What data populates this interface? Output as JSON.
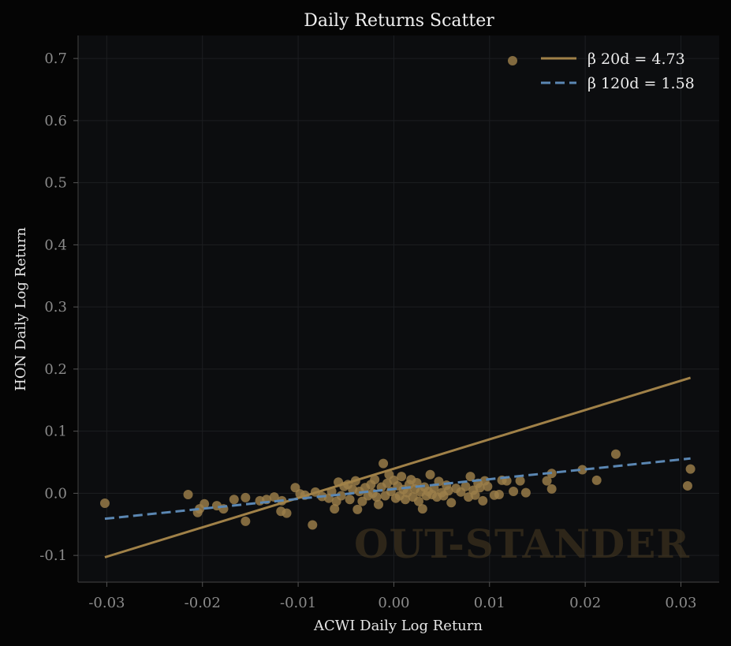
{
  "chart_data": {
    "type": "scatter",
    "title": "Daily Returns Scatter",
    "xlabel": "ACWI Daily Log Return",
    "ylabel": "HON Daily Log Return",
    "xlim": [
      -0.033,
      0.034
    ],
    "ylim": [
      -0.143,
      0.737
    ],
    "xticks": [
      -0.03,
      -0.02,
      -0.01,
      0.0,
      0.01,
      0.02,
      0.03
    ],
    "xtick_labels": [
      "-0.03",
      "-0.02",
      "-0.01",
      "0.00",
      "0.01",
      "0.02",
      "0.03"
    ],
    "yticks": [
      -0.1,
      0.0,
      0.1,
      0.2,
      0.3,
      0.4,
      0.5,
      0.6,
      0.7
    ],
    "ytick_labels": [
      "-0.1",
      "0.0",
      "0.1",
      "0.2",
      "0.3",
      "0.4",
      "0.5",
      "0.6",
      "0.7"
    ],
    "grid": true,
    "legend_position": "top-right",
    "watermark": "OUT-STANDER",
    "colors": {
      "background": "#050505",
      "plot_background": "#0c0d0f",
      "points": "#9c7f4a",
      "beta_20d": "#a08148",
      "beta_120d": "#5b87b3"
    },
    "series": [
      {
        "name": "",
        "kind": "points",
        "points": [
          [
            -0.0302,
            -0.016
          ],
          [
            -0.0215,
            -0.002
          ],
          [
            -0.0205,
            -0.031
          ],
          [
            -0.0203,
            -0.025
          ],
          [
            -0.0198,
            -0.017
          ],
          [
            -0.0185,
            -0.02
          ],
          [
            -0.0178,
            -0.025
          ],
          [
            -0.0167,
            -0.01
          ],
          [
            -0.0155,
            -0.007
          ],
          [
            -0.0155,
            -0.045
          ],
          [
            -0.014,
            -0.012
          ],
          [
            -0.0133,
            -0.01
          ],
          [
            -0.0125,
            -0.006
          ],
          [
            -0.0118,
            -0.029
          ],
          [
            -0.0117,
            -0.012
          ],
          [
            -0.0112,
            -0.032
          ],
          [
            -0.0103,
            0.009
          ],
          [
            -0.0098,
            -0.001
          ],
          [
            -0.0093,
            -0.003
          ],
          [
            -0.0085,
            -0.051
          ],
          [
            -0.0082,
            0.002
          ],
          [
            -0.0075,
            -0.005
          ],
          [
            -0.0068,
            -0.008
          ],
          [
            -0.0065,
            0.003
          ],
          [
            -0.0062,
            -0.025
          ],
          [
            -0.006,
            -0.013
          ],
          [
            -0.0058,
            0.018
          ],
          [
            -0.0055,
            -0.004
          ],
          [
            -0.0052,
            0.011
          ],
          [
            -0.0048,
            0.014
          ],
          [
            -0.0046,
            -0.01
          ],
          [
            -0.0043,
            0.006
          ],
          [
            -0.004,
            0.02
          ],
          [
            -0.0038,
            -0.026
          ],
          [
            -0.0036,
            0.003
          ],
          [
            -0.0033,
            -0.013
          ],
          [
            -0.003,
            0.009
          ],
          [
            -0.0027,
            -0.004
          ],
          [
            -0.0024,
            0.014
          ],
          [
            -0.0022,
            0.0
          ],
          [
            -0.002,
            0.022
          ],
          [
            -0.0018,
            -0.006
          ],
          [
            -0.0016,
            -0.018
          ],
          [
            -0.0013,
            0.01
          ],
          [
            -0.0011,
            0.048
          ],
          [
            -0.0009,
            -0.004
          ],
          [
            -0.0007,
            0.016
          ],
          [
            -0.0005,
            0.03
          ],
          [
            -0.0003,
            0.003
          ],
          [
            0.0,
            0.021
          ],
          [
            0.0002,
            -0.008
          ],
          [
            0.0004,
            0.012
          ],
          [
            0.0006,
            -0.004
          ],
          [
            0.0008,
            0.027
          ],
          [
            0.001,
            0.006
          ],
          [
            0.0012,
            -0.01
          ],
          [
            0.0014,
            0.001
          ],
          [
            0.0016,
            0.014
          ],
          [
            0.0018,
            0.022
          ],
          [
            0.002,
            -0.006
          ],
          [
            0.0022,
            0.007
          ],
          [
            0.0024,
            0.017
          ],
          [
            0.0026,
            -0.013
          ],
          [
            0.0028,
            0.002
          ],
          [
            0.003,
            -0.025
          ],
          [
            0.0032,
            0.01
          ],
          [
            0.0034,
            -0.004
          ],
          [
            0.0036,
            0.003
          ],
          [
            0.0038,
            0.03
          ],
          [
            0.004,
            -0.002
          ],
          [
            0.0042,
            0.008
          ],
          [
            0.0045,
            -0.006
          ],
          [
            0.0047,
            0.019
          ],
          [
            0.005,
            0.001
          ],
          [
            0.0052,
            -0.004
          ],
          [
            0.0055,
            0.013
          ],
          [
            0.0057,
            0.004
          ],
          [
            0.006,
            -0.015
          ],
          [
            0.0065,
            0.008
          ],
          [
            0.007,
            0.002
          ],
          [
            0.0075,
            0.011
          ],
          [
            0.0078,
            -0.006
          ],
          [
            0.008,
            0.027
          ],
          [
            0.0083,
            0.005
          ],
          [
            0.0085,
            -0.003
          ],
          [
            0.0088,
            0.016
          ],
          [
            0.009,
            0.009
          ],
          [
            0.0093,
            -0.012
          ],
          [
            0.0095,
            0.02
          ],
          [
            0.0098,
            0.011
          ],
          [
            0.0105,
            -0.003
          ],
          [
            0.011,
            -0.002
          ],
          [
            0.0113,
            0.021
          ],
          [
            0.0118,
            0.02
          ],
          [
            0.0125,
            0.003
          ],
          [
            0.0132,
            0.02
          ],
          [
            0.0138,
            0.001
          ],
          [
            0.016,
            0.02
          ],
          [
            0.0165,
            0.032
          ],
          [
            0.0165,
            0.007
          ],
          [
            0.0197,
            0.038
          ],
          [
            0.0212,
            0.021
          ],
          [
            0.0232,
            0.063
          ],
          [
            0.0307,
            0.012
          ],
          [
            0.031,
            0.039
          ]
        ]
      },
      {
        "name": "β 20d = 4.73",
        "kind": "line",
        "style": "solid",
        "x": [
          -0.0302,
          0.031
        ],
        "y": [
          -0.103,
          0.186
        ]
      },
      {
        "name": "β 120d = 1.58",
        "kind": "line",
        "style": "dashed",
        "x": [
          -0.0302,
          0.031
        ],
        "y": [
          -0.041,
          0.056
        ]
      }
    ]
  }
}
